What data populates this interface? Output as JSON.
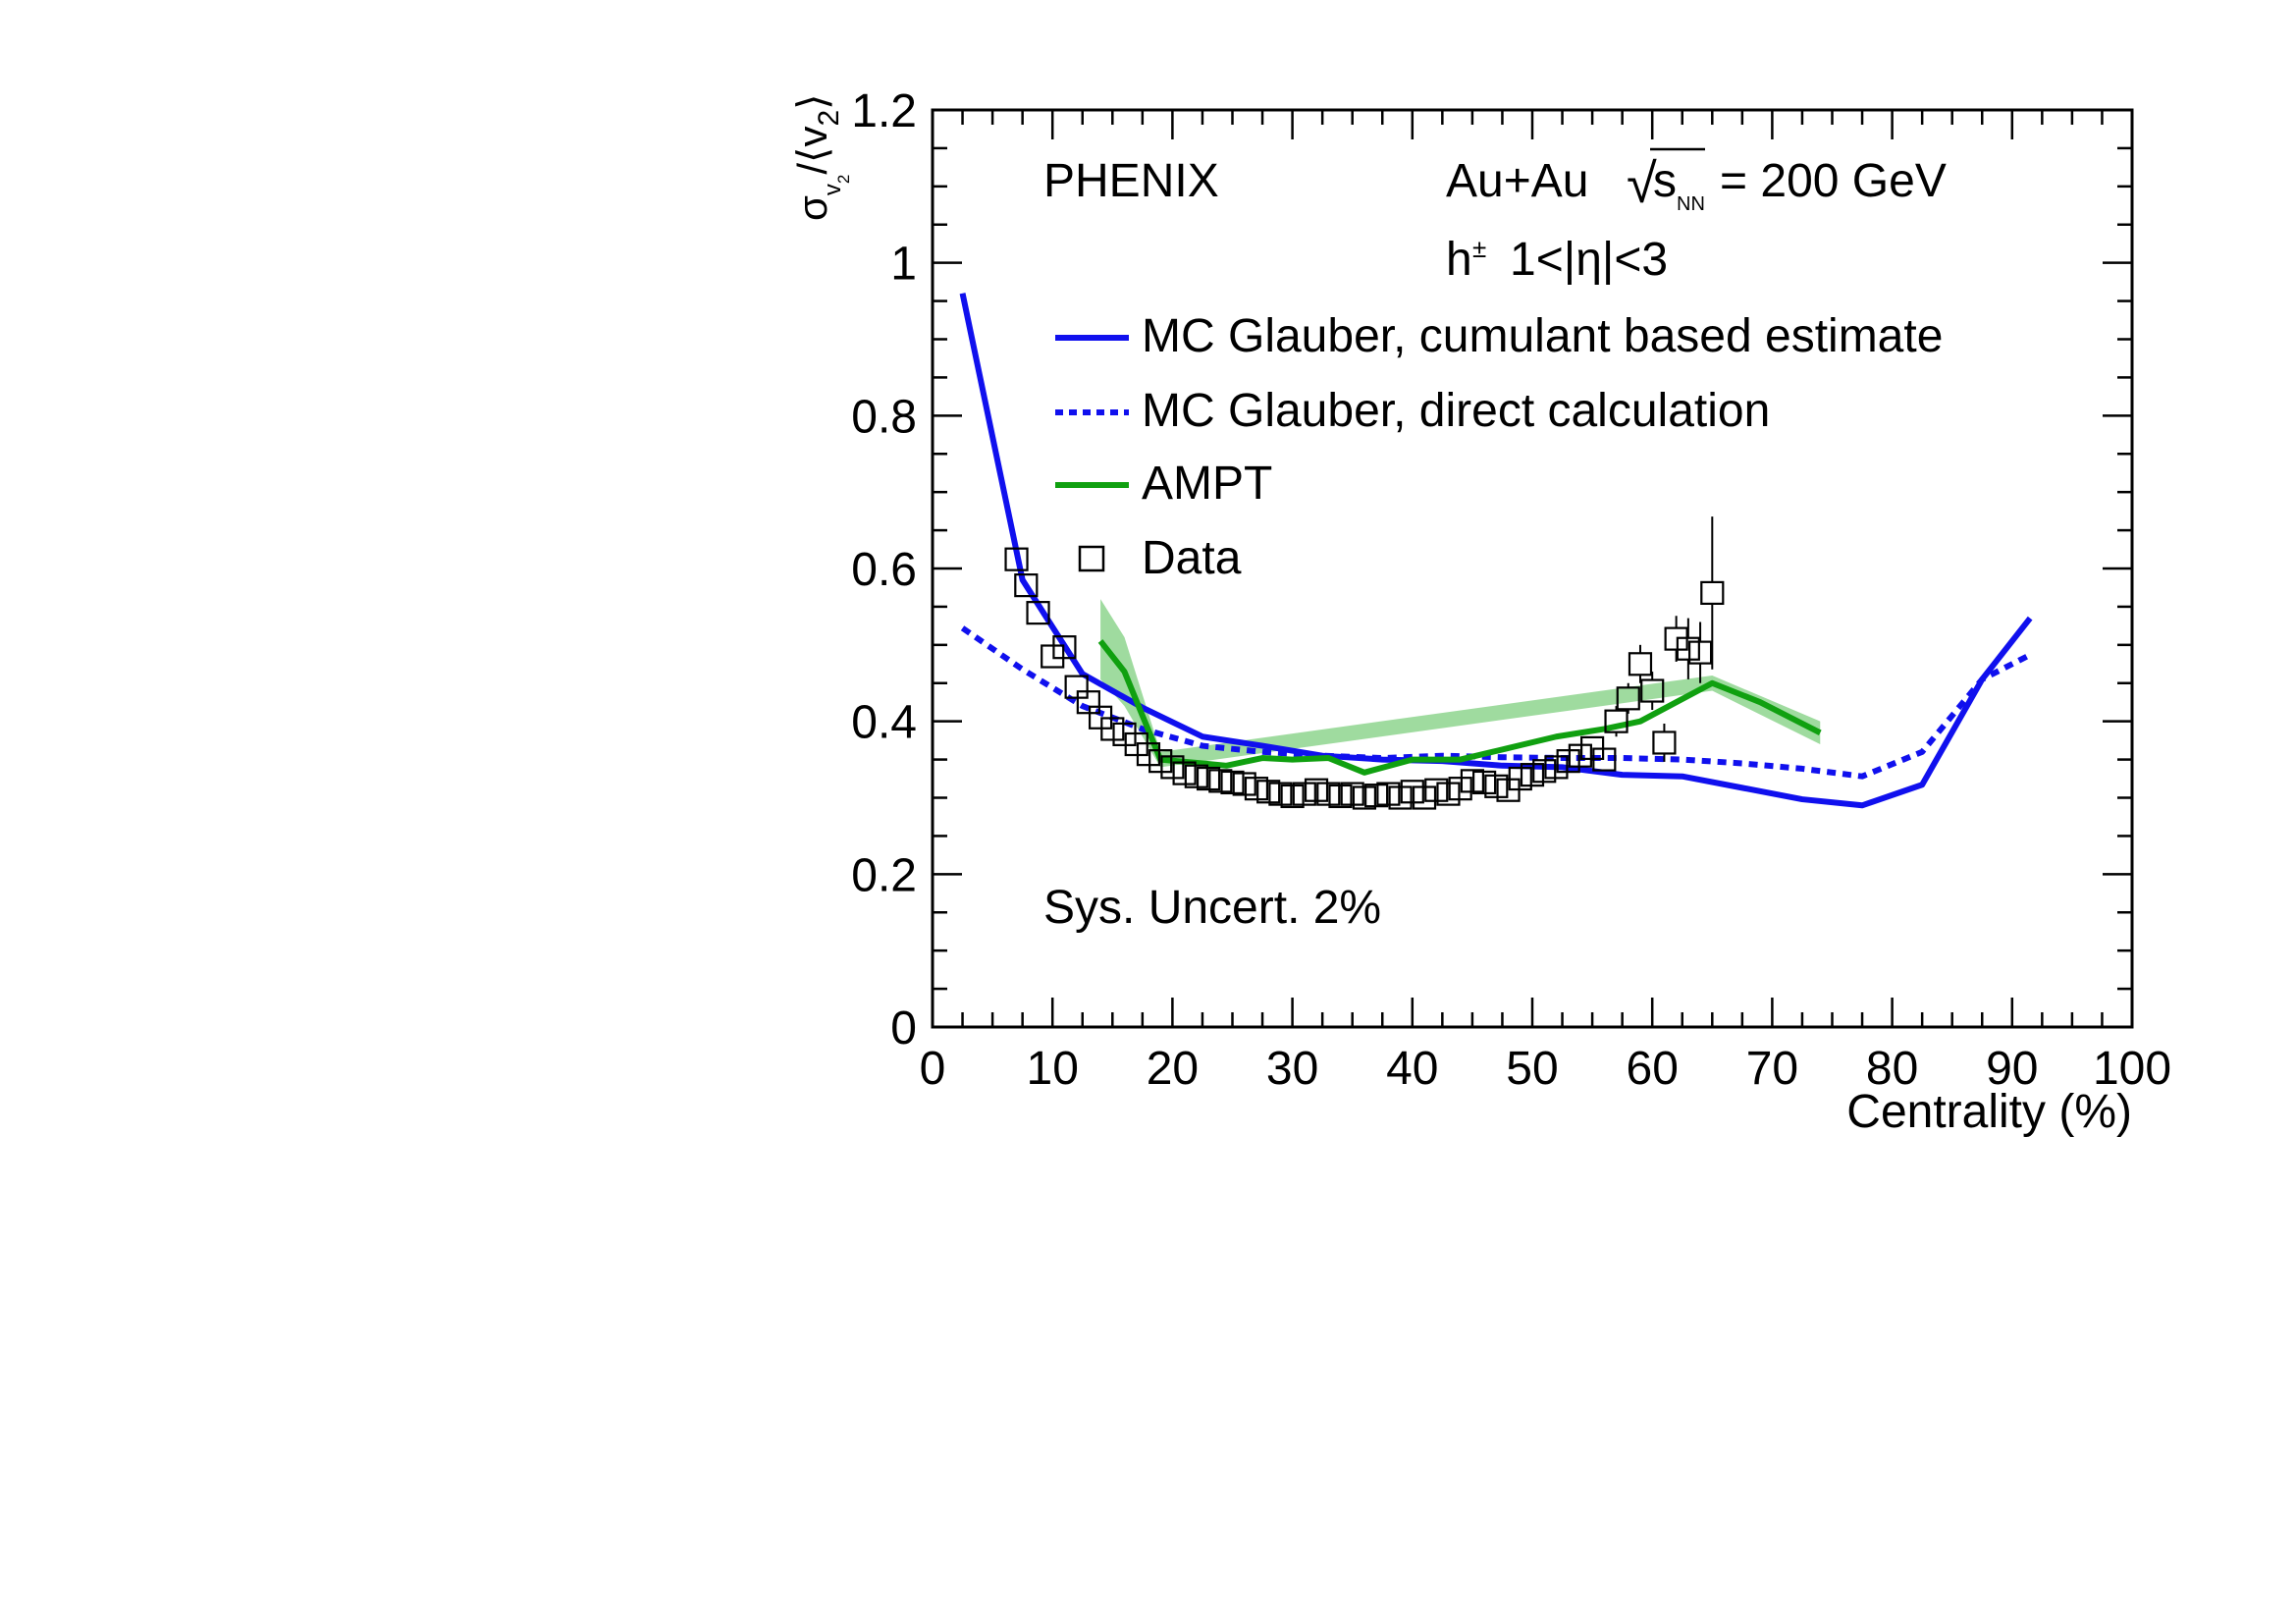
{
  "chart_data": {
    "type": "line",
    "xlim": [
      0,
      100
    ],
    "ylim": [
      0,
      1.2
    ],
    "xlabel": "Centrality (%)",
    "ylabel": {
      "sigma": "σ",
      "sub_v": "v",
      "sub_2": "2",
      "slash": "/⟨v",
      "close": "⟩"
    },
    "x_ticks": [
      {
        "value": 0,
        "label": "0"
      },
      {
        "value": 10,
        "label": "10"
      },
      {
        "value": 20,
        "label": "20"
      },
      {
        "value": 30,
        "label": "30"
      },
      {
        "value": 40,
        "label": "40"
      },
      {
        "value": 50,
        "label": "50"
      },
      {
        "value": 60,
        "label": "60"
      },
      {
        "value": 70,
        "label": "70"
      },
      {
        "value": 80,
        "label": "80"
      },
      {
        "value": 90,
        "label": "90"
      },
      {
        "value": 100,
        "label": "100"
      }
    ],
    "y_ticks": [
      {
        "value": 0,
        "label": "0"
      },
      {
        "value": 0.2,
        "label": "0.2"
      },
      {
        "value": 0.4,
        "label": "0.4"
      },
      {
        "value": 0.6,
        "label": "0.6"
      },
      {
        "value": 0.8,
        "label": "0.8"
      },
      {
        "value": 1.0,
        "label": "1"
      },
      {
        "value": 1.2,
        "label": "1.2"
      }
    ],
    "grid": false,
    "annotations": {
      "experiment": "PHENIX",
      "system": "Au+Au",
      "sqrt": "√",
      "s": "s",
      "nn": "NN",
      "energy": "= 200 GeV",
      "hadrons": "h",
      "charge": "±",
      "eta": "1<|η|<3",
      "sys_uncert": "Sys. Uncert. 2%"
    },
    "legend_position": "top-right",
    "series": [
      {
        "name": "MC Glauber, cumulant based estimate",
        "style": "solid",
        "color": "#1010ee",
        "points": [
          [
            2.5,
            0.96
          ],
          [
            7.5,
            0.585
          ],
          [
            12.5,
            0.462
          ],
          [
            17.5,
            0.418
          ],
          [
            22.5,
            0.38
          ],
          [
            27.5,
            0.368
          ],
          [
            32.5,
            0.355
          ],
          [
            37.5,
            0.35
          ],
          [
            42.5,
            0.348
          ],
          [
            47.5,
            0.342
          ],
          [
            52.5,
            0.34
          ],
          [
            57.5,
            0.33
          ],
          [
            62.5,
            0.328
          ],
          [
            67.5,
            0.313
          ],
          [
            72.5,
            0.298
          ],
          [
            77.5,
            0.29
          ],
          [
            82.5,
            0.317
          ],
          [
            87.5,
            0.455
          ],
          [
            91.5,
            0.535
          ]
        ]
      },
      {
        "name": "MC Glauber, direct calculation",
        "style": "dotted",
        "color": "#1010ee",
        "points": [
          [
            2.5,
            0.522
          ],
          [
            7.5,
            0.468
          ],
          [
            12.5,
            0.42
          ],
          [
            17.5,
            0.39
          ],
          [
            22.5,
            0.368
          ],
          [
            27.5,
            0.36
          ],
          [
            32.5,
            0.355
          ],
          [
            37.5,
            0.352
          ],
          [
            42.5,
            0.355
          ],
          [
            47.5,
            0.353
          ],
          [
            52.5,
            0.352
          ],
          [
            57.5,
            0.352
          ],
          [
            62.5,
            0.35
          ],
          [
            67.5,
            0.345
          ],
          [
            72.5,
            0.338
          ],
          [
            77.5,
            0.328
          ],
          [
            82.5,
            0.36
          ],
          [
            87.5,
            0.455
          ],
          [
            91.5,
            0.487
          ]
        ]
      },
      {
        "name": "AMPT",
        "style": "solid",
        "color": "#10a010",
        "band_color": "#7fcf7f",
        "points": [
          [
            14.0,
            0.505
          ],
          [
            16.0,
            0.465
          ],
          [
            19.0,
            0.35
          ],
          [
            22.5,
            0.345
          ],
          [
            24.5,
            0.342
          ],
          [
            27.5,
            0.352
          ],
          [
            30.0,
            0.35
          ],
          [
            33.0,
            0.352
          ],
          [
            36.0,
            0.333
          ],
          [
            40.0,
            0.35
          ],
          [
            44.0,
            0.35
          ],
          [
            48.0,
            0.365
          ],
          [
            52.0,
            0.38
          ],
          [
            56.0,
            0.39
          ],
          [
            59.0,
            0.4
          ],
          [
            62.0,
            0.425
          ],
          [
            65.0,
            0.45
          ],
          [
            69.0,
            0.425
          ],
          [
            74.0,
            0.385
          ]
        ],
        "band": [
          [
            14.0,
            0.455,
            0.56
          ],
          [
            16.0,
            0.42,
            0.51
          ],
          [
            19.0,
            0.34,
            0.36
          ],
          [
            65.0,
            0.44,
            0.46
          ],
          [
            74.0,
            0.37,
            0.4
          ]
        ]
      },
      {
        "name": "Data",
        "style": "open-square",
        "color": "#000000",
        "points": [
          [
            7.0,
            0.612,
            0
          ],
          [
            7.8,
            0.578,
            0
          ],
          [
            8.8,
            0.542,
            0
          ],
          [
            10.0,
            0.485,
            0
          ],
          [
            11.0,
            0.497,
            0
          ],
          [
            12.0,
            0.445,
            0
          ],
          [
            13.0,
            0.425,
            0
          ],
          [
            14.0,
            0.405,
            0
          ],
          [
            15.0,
            0.39,
            0
          ],
          [
            16.0,
            0.383,
            0
          ],
          [
            17.0,
            0.37,
            0
          ],
          [
            18.0,
            0.357,
            0
          ],
          [
            19.0,
            0.348,
            0
          ],
          [
            20.0,
            0.34,
            0
          ],
          [
            21.0,
            0.332,
            0
          ],
          [
            22.0,
            0.328,
            0
          ],
          [
            23.0,
            0.325,
            0
          ],
          [
            24.0,
            0.322,
            0
          ],
          [
            25.0,
            0.32,
            0
          ],
          [
            26.0,
            0.318,
            0
          ],
          [
            27.0,
            0.312,
            0
          ],
          [
            28.0,
            0.308,
            0
          ],
          [
            29.0,
            0.305,
            0
          ],
          [
            30.0,
            0.302,
            0
          ],
          [
            31.0,
            0.305,
            0
          ],
          [
            32.0,
            0.31,
            0
          ],
          [
            33.0,
            0.305,
            0
          ],
          [
            34.0,
            0.302,
            0
          ],
          [
            35.0,
            0.305,
            0
          ],
          [
            36.0,
            0.3,
            0
          ],
          [
            37.0,
            0.303,
            0
          ],
          [
            38.0,
            0.305,
            0
          ],
          [
            39.0,
            0.3,
            0
          ],
          [
            40.0,
            0.308,
            0
          ],
          [
            41.0,
            0.3,
            0
          ],
          [
            42.0,
            0.31,
            0
          ],
          [
            43.0,
            0.305,
            0
          ],
          [
            44.0,
            0.312,
            0
          ],
          [
            45.0,
            0.322,
            0
          ],
          [
            46.0,
            0.32,
            0
          ],
          [
            47.0,
            0.315,
            0
          ],
          [
            48.0,
            0.31,
            0
          ],
          [
            49.0,
            0.325,
            0
          ],
          [
            50.0,
            0.33,
            0
          ],
          [
            51.0,
            0.335,
            0
          ],
          [
            52.0,
            0.34,
            0
          ],
          [
            53.0,
            0.348,
            0
          ],
          [
            54.0,
            0.355,
            0
          ],
          [
            55.0,
            0.365,
            0
          ],
          [
            56.0,
            0.35,
            0
          ],
          [
            57.0,
            0.4,
            0.02
          ],
          [
            58.0,
            0.43,
            0.02
          ],
          [
            59.0,
            0.475,
            0.025
          ],
          [
            60.0,
            0.44,
            0.025
          ],
          [
            61.0,
            0.372,
            0.025
          ],
          [
            62.0,
            0.508,
            0.03
          ],
          [
            63.0,
            0.495,
            0.04
          ],
          [
            64.0,
            0.49,
            0.04
          ],
          [
            65.0,
            0.568,
            0.1
          ]
        ]
      }
    ]
  }
}
